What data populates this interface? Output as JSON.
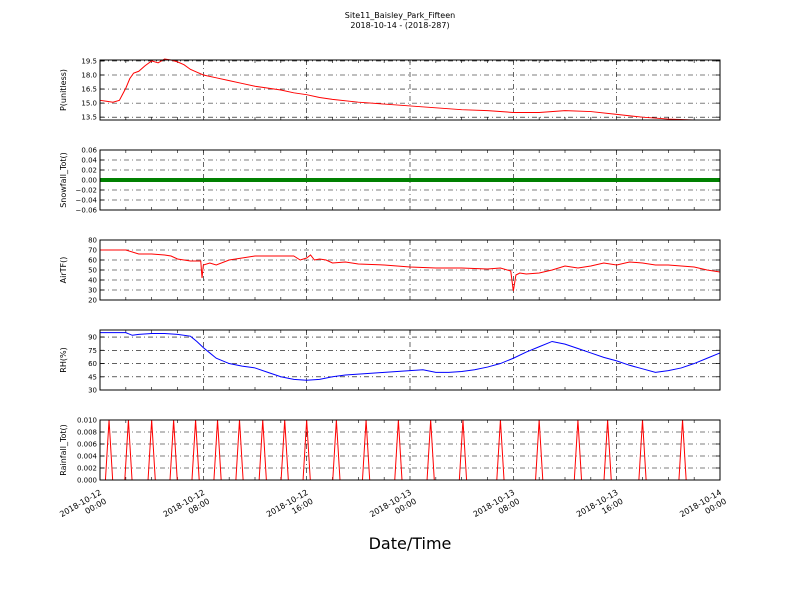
{
  "header": {
    "title": "Site11_Baisley_Park_Fifteen",
    "subtitle": "2018-10-14 - (2018-287)"
  },
  "figure": {
    "xlabel": "Date/Time",
    "x_ticks": [
      "2018-10-12\n00:00",
      "2018-10-12\n08:00",
      "2018-10-12\n16:00",
      "2018-10-13\n00:00",
      "2018-10-13\n08:00",
      "2018-10-13\n16:00",
      "2018-10-14\n00:00"
    ]
  },
  "chart_data": [
    {
      "type": "line",
      "ylabel": "P(unitless)",
      "color": "#ff0000",
      "ylim": [
        13.2,
        19.6
      ],
      "yticks": [
        "19.5",
        "18.0",
        "16.5",
        "15.0",
        "13.5"
      ],
      "ytick_values": [
        19.5,
        18.0,
        16.5,
        15.0,
        13.5
      ],
      "xlim": [
        0,
        48
      ],
      "grid": true,
      "x": [
        0,
        0.5,
        1,
        1.5,
        2,
        2.3,
        2.6,
        3,
        3.5,
        4,
        4.5,
        5,
        5.5,
        6,
        6.5,
        7,
        7.5,
        8,
        9,
        10,
        11,
        12,
        13,
        14,
        15,
        16,
        17,
        18,
        20,
        22,
        24,
        26,
        28,
        30,
        32,
        34,
        36,
        38,
        40,
        42,
        44,
        46,
        48
      ],
      "y": [
        15.3,
        15.2,
        15.1,
        15.3,
        16.6,
        17.6,
        18.2,
        18.4,
        19.0,
        19.5,
        19.3,
        19.7,
        19.6,
        19.4,
        19.1,
        18.6,
        18.3,
        18.0,
        17.7,
        17.4,
        17.1,
        16.8,
        16.6,
        16.4,
        16.1,
        15.9,
        15.6,
        15.4,
        15.1,
        14.9,
        14.7,
        14.5,
        14.3,
        14.2,
        14.0,
        14.0,
        14.2,
        14.1,
        13.8,
        13.5,
        13.3,
        13.2,
        13.2
      ]
    },
    {
      "type": "line",
      "ylabel": "Snowfall_Tot()",
      "color": "#008000",
      "ylim": [
        -0.06,
        0.06
      ],
      "yticks": [
        "0.06",
        "0.04",
        "0.02",
        "0.00",
        "−0.02",
        "−0.04",
        "−0.06"
      ],
      "ytick_values": [
        0.06,
        0.04,
        0.02,
        0.0,
        -0.02,
        -0.04,
        -0.06
      ],
      "xlim": [
        0,
        48
      ],
      "grid": true,
      "x": [
        0,
        48
      ],
      "y": [
        0.0,
        0.0
      ]
    },
    {
      "type": "line",
      "ylabel": "AirTF()",
      "color": "#ff0000",
      "ylim": [
        20,
        80
      ],
      "yticks": [
        "80",
        "70",
        "60",
        "50",
        "40",
        "30",
        "20"
      ],
      "ytick_values": [
        80,
        70,
        60,
        50,
        40,
        30,
        20
      ],
      "xlim": [
        0,
        48
      ],
      "grid": true,
      "x": [
        0,
        1,
        2,
        3,
        4,
        5,
        5.5,
        6,
        7,
        7.8,
        7.9,
        8,
        8.5,
        9,
        10,
        11,
        12,
        13,
        14,
        15,
        15.5,
        16,
        16.3,
        16.6,
        17,
        17.5,
        18,
        19,
        20,
        22,
        24,
        26,
        28,
        30,
        31,
        31.8,
        32,
        32.2,
        32.5,
        33,
        34,
        35,
        36,
        37,
        38,
        39,
        40,
        41,
        42,
        43,
        44,
        45,
        46,
        47,
        48
      ],
      "y": [
        70,
        70,
        70,
        66,
        66,
        65,
        64,
        61,
        59,
        59,
        42,
        55,
        57,
        55,
        60,
        62,
        64,
        64,
        64,
        64,
        60,
        62,
        65,
        60,
        61,
        60,
        57,
        58,
        56,
        55,
        53,
        52,
        52,
        51,
        52,
        49,
        29,
        45,
        47,
        46,
        47,
        50,
        54,
        52,
        54,
        57,
        55,
        58,
        57,
        55,
        55,
        54,
        53,
        50,
        48
      ]
    },
    {
      "type": "line",
      "ylabel": "RH(%)",
      "color": "#0000ff",
      "ylim": [
        30,
        98
      ],
      "yticks": [
        "90",
        "75",
        "60",
        "45",
        "30"
      ],
      "ytick_values": [
        90,
        75,
        60,
        45,
        30
      ],
      "xlim": [
        0,
        48
      ],
      "grid": true,
      "x": [
        0,
        1,
        2,
        2.5,
        3,
        4,
        5,
        6,
        7,
        7.5,
        8,
        8.5,
        9,
        10,
        11,
        12,
        13,
        14,
        15,
        16,
        17,
        18,
        19,
        20,
        21,
        22,
        23,
        24,
        25,
        26,
        27,
        28,
        29,
        30,
        31,
        32,
        33,
        34,
        35,
        36,
        37,
        38,
        39,
        40,
        41,
        42,
        43,
        44,
        45,
        46,
        47,
        48
      ],
      "y": [
        95,
        95,
        95,
        92,
        93,
        94,
        94,
        93,
        91,
        85,
        78,
        72,
        66,
        60,
        57,
        55,
        50,
        45,
        42,
        41,
        42,
        45,
        47,
        48,
        49,
        50,
        51,
        52,
        53,
        50,
        50,
        51,
        53,
        56,
        60,
        66,
        73,
        79,
        85,
        82,
        77,
        72,
        67,
        63,
        58,
        54,
        50,
        52,
        55,
        60,
        66,
        72
      ]
    },
    {
      "type": "line",
      "ylabel": "Rainfall_Tot()",
      "color": "#ff0000",
      "ylim": [
        0,
        0.01
      ],
      "yticks": [
        "0.010",
        "0.008",
        "0.006",
        "0.004",
        "0.002",
        "0.000"
      ],
      "ytick_values": [
        0.01,
        0.008,
        0.006,
        0.004,
        0.002,
        0.0
      ],
      "xlim": [
        0,
        48
      ],
      "grid": true,
      "spike_x": [
        0.7,
        2.2,
        4.0,
        5.7,
        7.4,
        9.1,
        10.8,
        12.6,
        14.3,
        16.0,
        18.3,
        20.6,
        23.1,
        25.6,
        28.1,
        31.0,
        34.0,
        37.0,
        39.3,
        42.0,
        45.1
      ],
      "spike_value": 0.01
    }
  ]
}
